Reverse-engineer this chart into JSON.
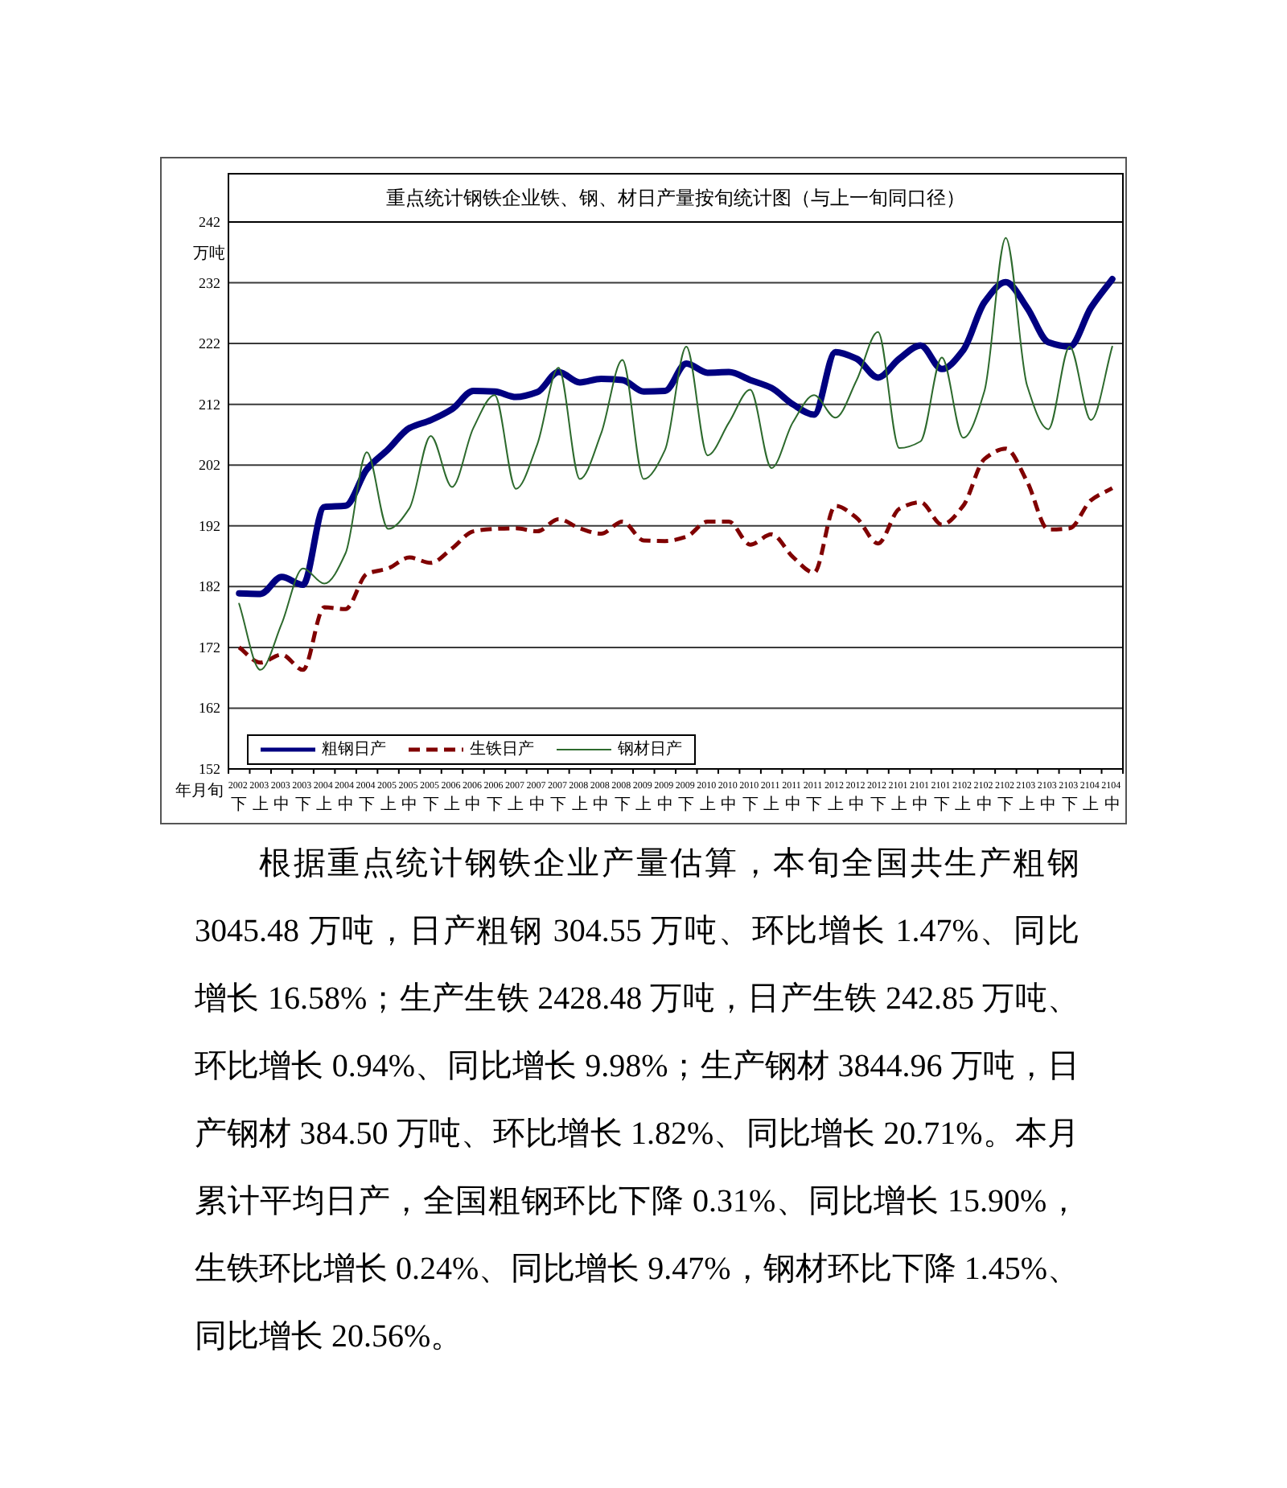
{
  "chart_data": {
    "type": "line",
    "title": "重点统计钢铁企业铁、钢、材日产量按旬统计图（与上一旬同口径）",
    "xlabel": "年月旬",
    "ylabel": "万吨",
    "categories": [
      "2002 下",
      "2003 上",
      "2003 中",
      "2003 下",
      "2004 上",
      "2004 中",
      "2004 下",
      "2005 上",
      "2005 中",
      "2005 下",
      "2006 上",
      "2006 中",
      "2006 下",
      "2007 上",
      "2007 中",
      "2007 下",
      "2008 上",
      "2008 中",
      "2008 下",
      "2009 上",
      "2009 中",
      "2009 下",
      "2010 上",
      "2010 中",
      "2010 下",
      "2011 上",
      "2011 中",
      "2011 下",
      "2012 上",
      "2012 中",
      "2012 下",
      "2101 上",
      "2101 中",
      "2101 下",
      "2102 上",
      "2102 中",
      "2102 下",
      "2103 上",
      "2103 中",
      "2103 下",
      "2104 上",
      "2104 中"
    ],
    "series": [
      {
        "name": "粗钢日产",
        "color": "#000080",
        "line_style": "solid",
        "values": [
          180.9,
          180.8,
          183.6,
          182.3,
          195.1,
          195.3,
          201.3,
          204.6,
          208.1,
          209.4,
          211.2,
          214.2,
          214.1,
          213.2,
          214.0,
          217.3,
          215.6,
          216.2,
          216.0,
          214.1,
          214.2,
          218.7,
          217.2,
          217.3,
          216.0,
          214.7,
          212.0,
          210.3,
          220.6,
          219.5,
          216.4,
          219.5,
          221.7,
          217.8,
          220.9,
          228.8,
          232.1,
          227.9,
          222.2,
          221.5,
          227.9,
          232.6
        ]
      },
      {
        "name": "生铁日产",
        "color": "#800000",
        "line_style": "dashed",
        "values": [
          172.0,
          169.5,
          170.8,
          168.3,
          178.6,
          178.3,
          184.1,
          185.0,
          186.8,
          185.9,
          188.3,
          191.1,
          191.5,
          191.6,
          191.1,
          193.1,
          191.6,
          190.7,
          192.7,
          189.6,
          189.5,
          190.2,
          192.7,
          192.7,
          188.9,
          190.6,
          186.9,
          184.3,
          195.3,
          193.3,
          189.1,
          194.8,
          195.9,
          192.2,
          195.3,
          203.0,
          204.7,
          199.3,
          191.4,
          191.6,
          196.2,
          198.2
        ]
      },
      {
        "name": "钢材日产",
        "color": "#2d6a2d",
        "line_style": "solid",
        "values": [
          179.2,
          168.3,
          175.9,
          185.0,
          182.5,
          187.5,
          204.1,
          191.5,
          194.9,
          206.8,
          198.4,
          208.1,
          213.5,
          198.1,
          205.4,
          218.0,
          199.7,
          207.2,
          219.3,
          199.7,
          204.5,
          221.5,
          203.6,
          209.0,
          214.4,
          201.5,
          209.0,
          213.5,
          209.8,
          216.0,
          223.9,
          204.8,
          205.9,
          219.7,
          206.5,
          214.2,
          239.4,
          215.1,
          207.9,
          221.5,
          209.4,
          221.5
        ]
      }
    ],
    "ylim": [
      152,
      242
    ],
    "yticks": [
      152,
      162,
      172,
      182,
      192,
      202,
      212,
      222,
      232,
      242
    ],
    "grid": "y",
    "legend": "bottom left",
    "annotations": [
      "根据重点统计钢铁企业产量估算，本旬全国共生产粗钢 3045.48 万吨，日产粗钢 304.55 万吨、环比增长 1.47%、同比增长 16.58%；生产生铁 2428.48 万吨，日产生铁 242.85 万吨、环比增长 0.94%、同比增长 9.98%；生产钢材 3844.96 万吨，日产钢材 384.50 万吨、环比增长 1.82%、同比增长 20.71%。本月累计平均日产，全国粗钢环比下降 0.31%、同比增长 15.90%，生铁环比增长 0.24%、同比增长 9.47%，钢材环比下降 1.45%、同比增长 20.56%。"
    ]
  }
}
